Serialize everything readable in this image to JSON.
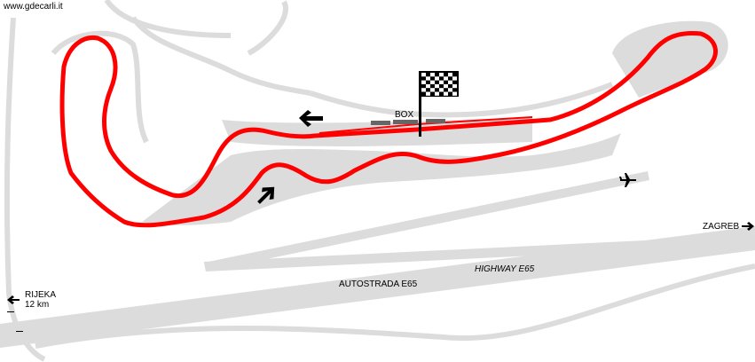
{
  "credit": "www.gdecarli.it",
  "labels": {
    "box": "BOX",
    "zagreb": "ZAGREB",
    "rijeka": "RIJEKA",
    "rijeka_distance": "12 km",
    "autostrada": "AUTOSTRADA E65",
    "highway": "HIGHWAY E65"
  },
  "colors": {
    "track": "#ff0000",
    "terrain": "#dcdcdc",
    "pit_building": "#666666",
    "background": "#ffffff"
  },
  "icons": [
    "checkered-flag",
    "direction-arrow-left",
    "direction-arrow-up-right",
    "airplane",
    "arrow-right",
    "arrow-left"
  ]
}
